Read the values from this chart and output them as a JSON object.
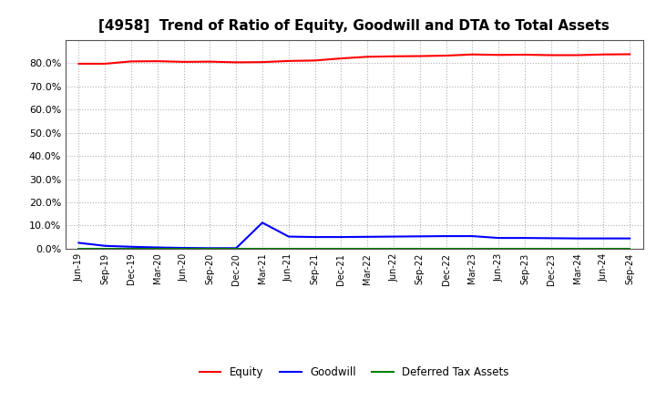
{
  "title": "[4958]  Trend of Ratio of Equity, Goodwill and DTA to Total Assets",
  "x_labels": [
    "Jun-19",
    "Sep-19",
    "Dec-19",
    "Mar-20",
    "Jun-20",
    "Sep-20",
    "Dec-20",
    "Mar-21",
    "Jun-21",
    "Sep-21",
    "Dec-21",
    "Mar-22",
    "Jun-22",
    "Sep-22",
    "Dec-22",
    "Mar-23",
    "Jun-23",
    "Sep-23",
    "Dec-23",
    "Mar-24",
    "Jun-24",
    "Sep-24"
  ],
  "equity": [
    79.8,
    79.8,
    80.8,
    80.9,
    80.6,
    80.7,
    80.4,
    80.5,
    81.0,
    81.2,
    82.1,
    82.8,
    83.0,
    83.1,
    83.3,
    83.8,
    83.6,
    83.7,
    83.5,
    83.5,
    83.8,
    83.9
  ],
  "goodwill": [
    2.5,
    1.2,
    0.8,
    0.5,
    0.3,
    0.2,
    0.2,
    11.2,
    5.2,
    5.0,
    5.0,
    5.1,
    5.2,
    5.3,
    5.4,
    5.4,
    4.6,
    4.6,
    4.5,
    4.4,
    4.4,
    4.4
  ],
  "dta": [
    0.05,
    0.05,
    0.05,
    0.05,
    0.05,
    0.05,
    0.05,
    0.05,
    0.05,
    0.05,
    0.05,
    0.05,
    0.05,
    0.05,
    0.05,
    0.05,
    0.05,
    0.05,
    0.05,
    0.05,
    0.05,
    0.05
  ],
  "equity_color": "#ff0000",
  "goodwill_color": "#0000ff",
  "dta_color": "#008000",
  "background_color": "#ffffff",
  "grid_color": "#b0b0b0",
  "ylim": [
    0,
    90
  ],
  "yticks": [
    0,
    10,
    20,
    30,
    40,
    50,
    60,
    70,
    80
  ],
  "title_fontsize": 11,
  "legend_labels": [
    "Equity",
    "Goodwill",
    "Deferred Tax Assets"
  ]
}
